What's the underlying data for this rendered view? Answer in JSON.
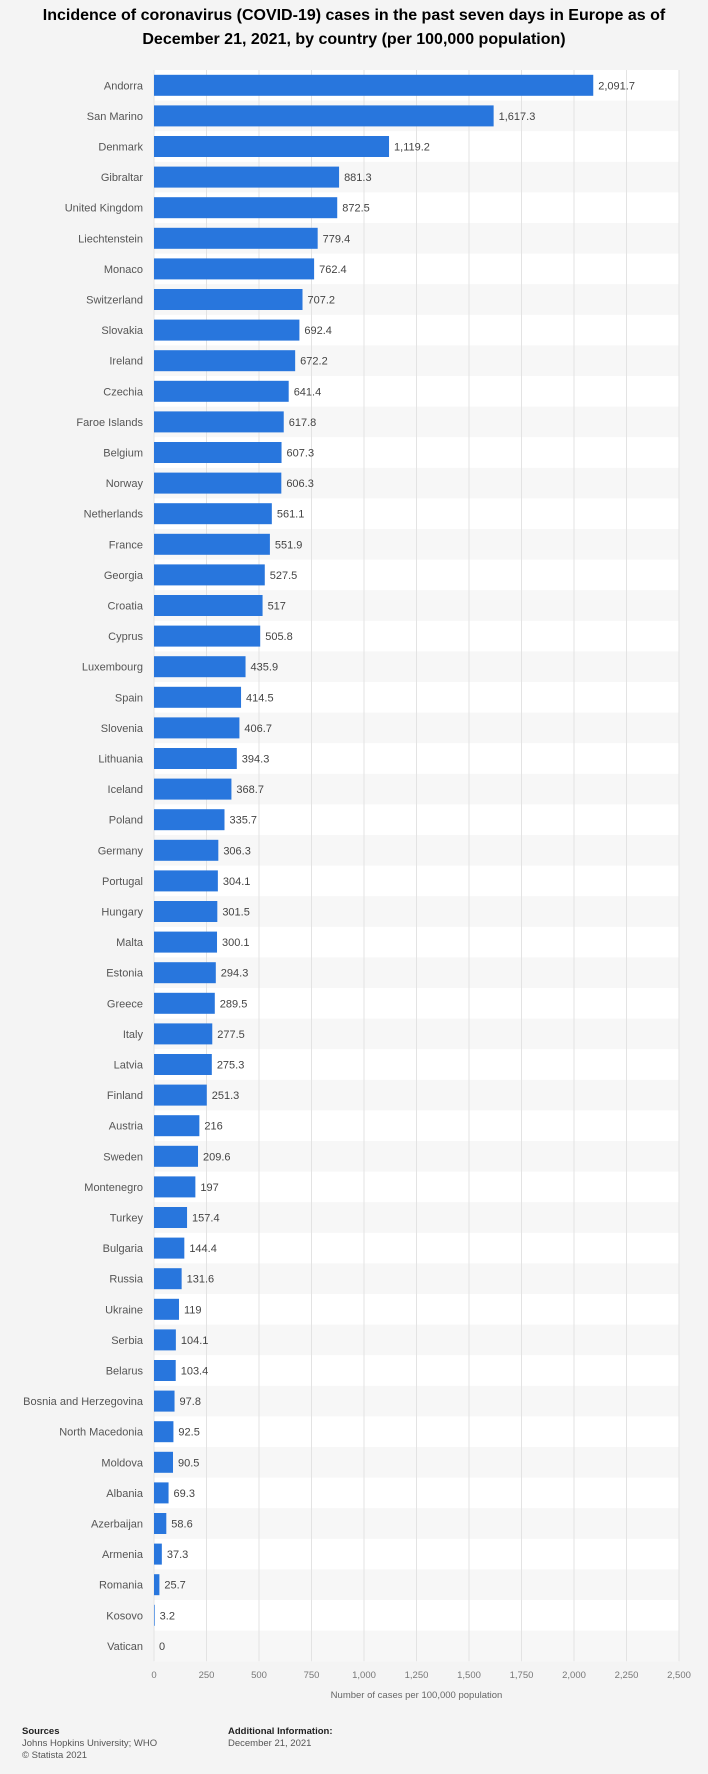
{
  "chart_data": {
    "type": "bar",
    "orientation": "horizontal",
    "title": "Incidence of coronavirus (COVID-19) cases in the past seven days in Europe as of December 21, 2021, by country (per 100,000 population)",
    "xlabel": "Number of cases per 100,000 population",
    "xlim": [
      0,
      2500
    ],
    "xticks": [
      0,
      250,
      500,
      750,
      1000,
      1250,
      1500,
      1750,
      2000,
      2250,
      2500
    ],
    "xtick_labels": [
      "0",
      "250",
      "500",
      "750",
      "1,000",
      "1,250",
      "1,500",
      "1,750",
      "2,000",
      "2,250",
      "2,500"
    ],
    "grid": true,
    "bar_color": "#2876dd",
    "categories": [
      "Andorra",
      "San Marino",
      "Denmark",
      "Gibraltar",
      "United Kingdom",
      "Liechtenstein",
      "Monaco",
      "Switzerland",
      "Slovakia",
      "Ireland",
      "Czechia",
      "Faroe Islands",
      "Belgium",
      "Norway",
      "Netherlands",
      "France",
      "Georgia",
      "Croatia",
      "Cyprus",
      "Luxembourg",
      "Spain",
      "Slovenia",
      "Lithuania",
      "Iceland",
      "Poland",
      "Germany",
      "Portugal",
      "Hungary",
      "Malta",
      "Estonia",
      "Greece",
      "Italy",
      "Latvia",
      "Finland",
      "Austria",
      "Sweden",
      "Montenegro",
      "Turkey",
      "Bulgaria",
      "Russia",
      "Ukraine",
      "Serbia",
      "Belarus",
      "Bosnia and Herzegovina",
      "North Macedonia",
      "Moldova",
      "Albania",
      "Azerbaijan",
      "Armenia",
      "Romania",
      "Kosovo",
      "Vatican"
    ],
    "values": [
      2091.7,
      1617.3,
      1119.2,
      881.3,
      872.5,
      779.4,
      762.4,
      707.2,
      692.4,
      672.2,
      641.4,
      617.8,
      607.3,
      606.3,
      561.1,
      551.9,
      527.5,
      517,
      505.8,
      435.9,
      414.5,
      406.7,
      394.3,
      368.7,
      335.7,
      306.3,
      304.1,
      301.5,
      300.1,
      294.3,
      289.5,
      277.5,
      275.3,
      251.3,
      216,
      209.6,
      197,
      157.4,
      144.4,
      131.6,
      119,
      104.1,
      103.4,
      97.8,
      92.5,
      90.5,
      69.3,
      58.6,
      37.3,
      25.7,
      3.2,
      0
    ],
    "value_labels": [
      "2,091.7",
      "1,617.3",
      "1,119.2",
      "881.3",
      "872.5",
      "779.4",
      "762.4",
      "707.2",
      "692.4",
      "672.2",
      "641.4",
      "617.8",
      "607.3",
      "606.3",
      "561.1",
      "551.9",
      "527.5",
      "517",
      "505.8",
      "435.9",
      "414.5",
      "406.7",
      "394.3",
      "368.7",
      "335.7",
      "306.3",
      "304.1",
      "301.5",
      "300.1",
      "294.3",
      "289.5",
      "277.5",
      "275.3",
      "251.3",
      "216",
      "209.6",
      "197",
      "157.4",
      "144.4",
      "131.6",
      "119",
      "104.1",
      "103.4",
      "97.8",
      "92.5",
      "90.5",
      "69.3",
      "58.6",
      "37.3",
      "25.7",
      "3.2",
      "0"
    ]
  },
  "footer": {
    "sources_heading": "Sources",
    "sources_text": "Johns Hopkins University; WHO",
    "copyright": "© Statista 2021",
    "additional_heading": "Additional Information:",
    "additional_text": "December 21, 2021"
  }
}
